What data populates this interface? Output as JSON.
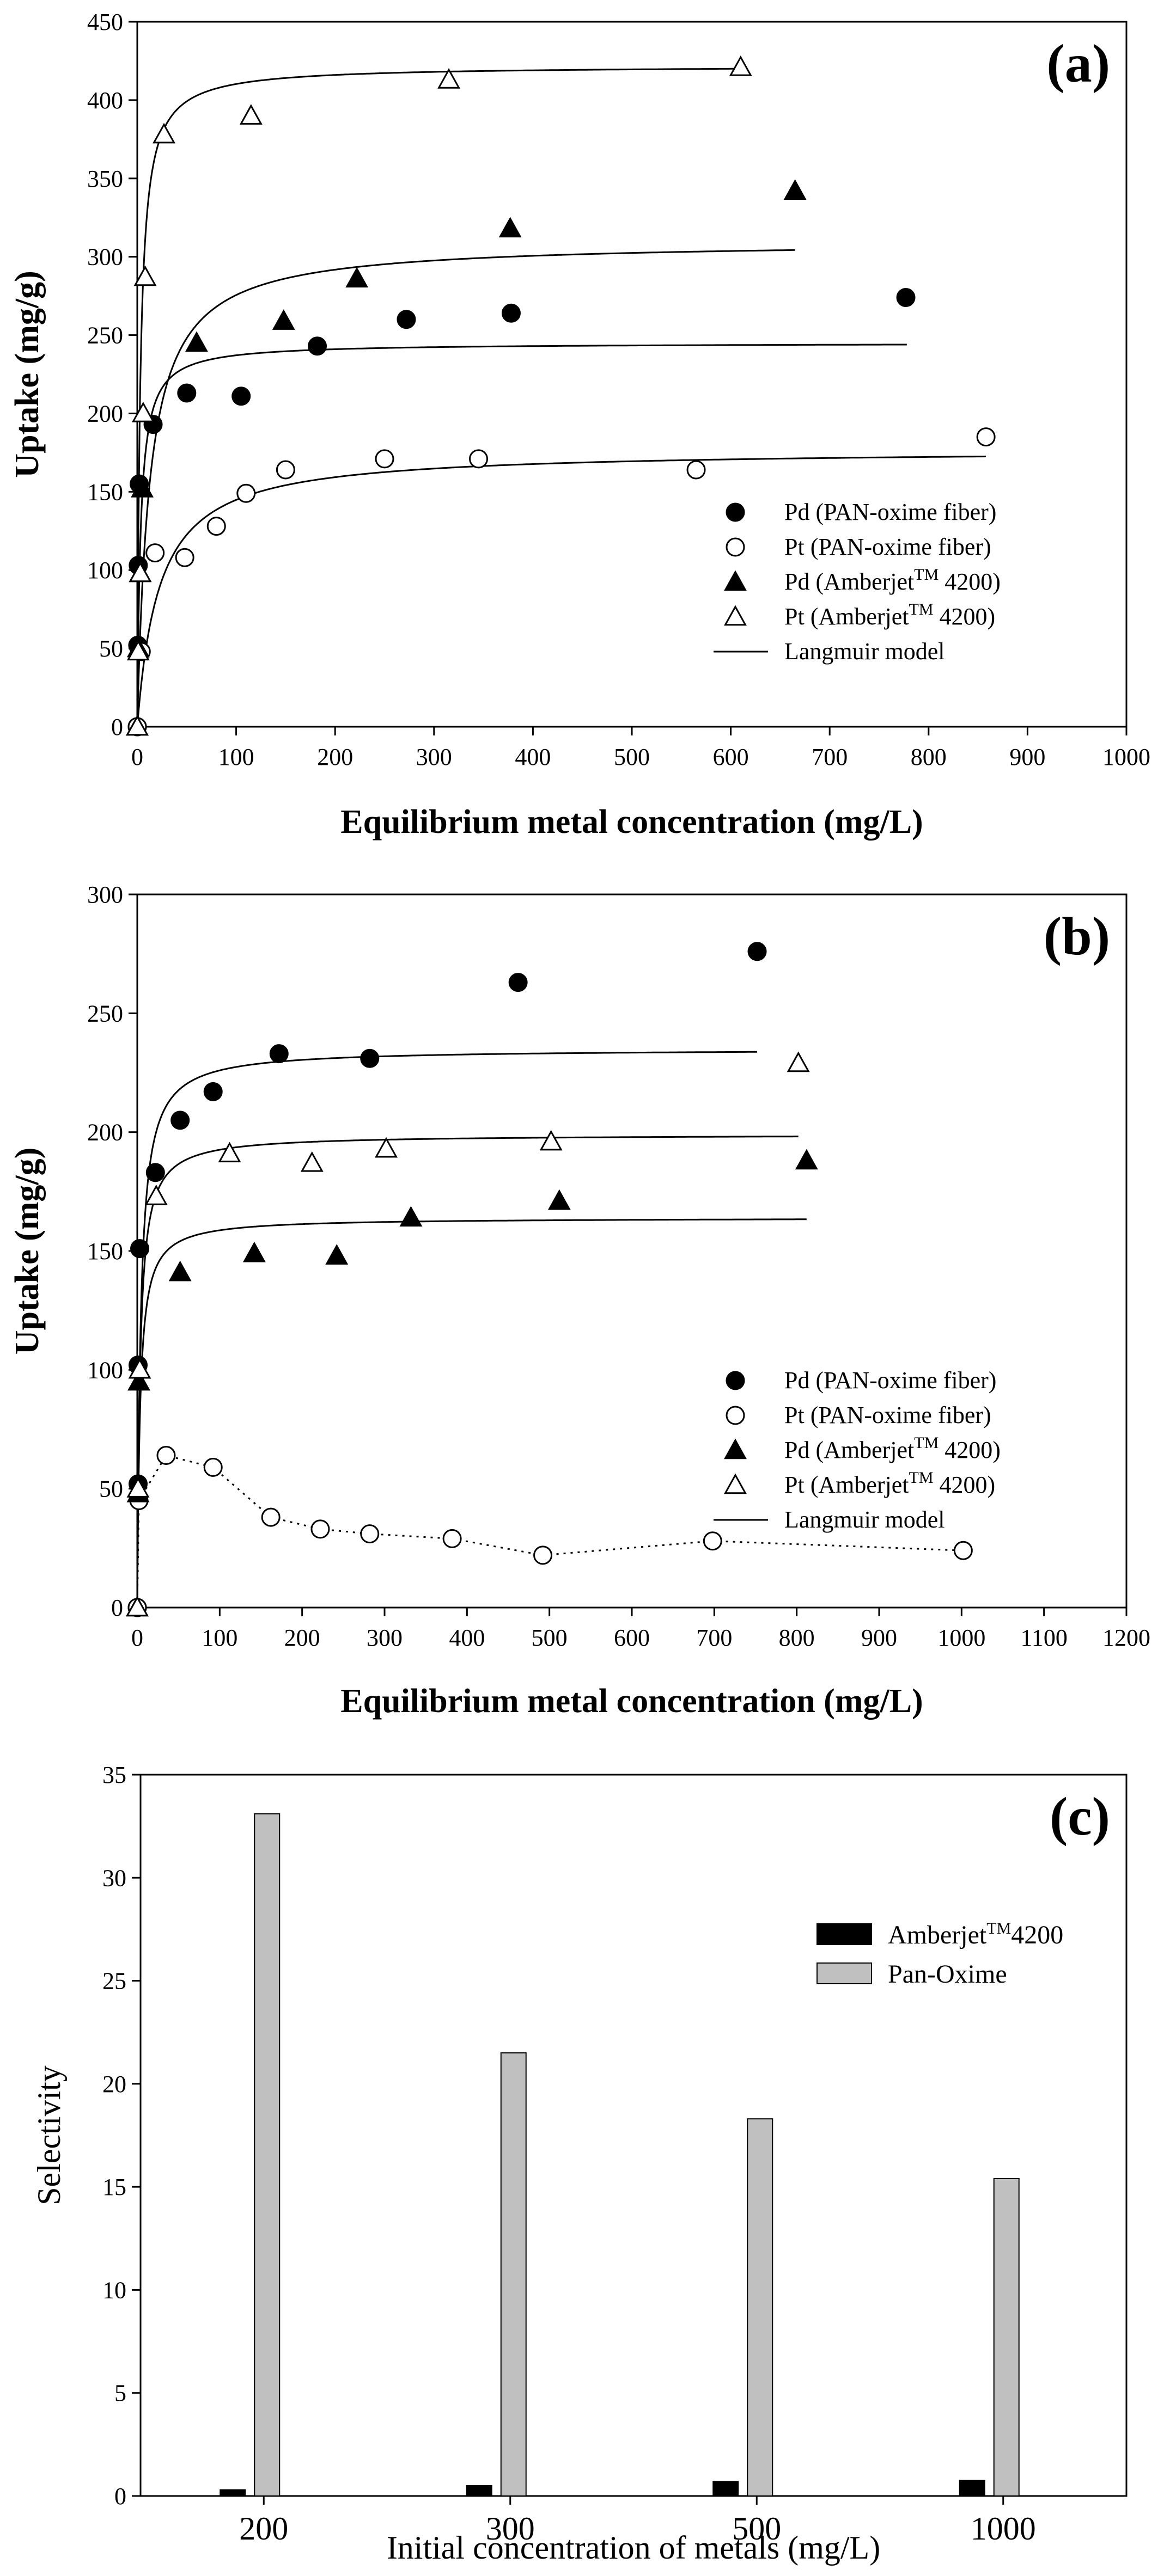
{
  "colors": {
    "ink": "#000000",
    "bar_pan": "#c0c0c0",
    "bar_amb": "#000000"
  },
  "chart_data": [
    {
      "id": "a",
      "type": "scatter",
      "panel_label": "(a)",
      "xlabel": "Equilibrium metal concentration (mg/L)",
      "ylabel": "Uptake (mg/g)",
      "xlim": [
        0,
        1000
      ],
      "ylim": [
        0,
        450
      ],
      "xticks": [
        0,
        100,
        200,
        300,
        400,
        500,
        600,
        700,
        800,
        900,
        1000
      ],
      "yticks": [
        0,
        50,
        100,
        150,
        200,
        250,
        300,
        350,
        400,
        450
      ],
      "legend": [
        {
          "label": "Pd (PAN-oxime fiber)",
          "kind": "marker",
          "marker": "circle-filled"
        },
        {
          "label": "Pt (PAN-oxime fiber)",
          "kind": "marker",
          "marker": "circle-open"
        },
        {
          "label": "Pd (Amberjet",
          "sup": "TM",
          "tail": " 4200)",
          "kind": "marker",
          "marker": "triangle-filled"
        },
        {
          "label": "Pt (Amberjet",
          "sup": "TM",
          "tail": " 4200)",
          "kind": "marker",
          "marker": "triangle-open"
        },
        {
          "label": "Langmuir model",
          "kind": "line"
        }
      ],
      "series": [
        {
          "name": "Pd (PAN-oxime fiber)",
          "marker": "circle-filled",
          "points": [
            [
              0,
              0
            ],
            [
              0.5,
              52
            ],
            [
              1,
              103
            ],
            [
              2,
              155
            ],
            [
              16,
              193
            ],
            [
              50,
              213
            ],
            [
              105,
              211
            ],
            [
              182,
              243
            ],
            [
              272,
              260
            ],
            [
              378,
              264
            ],
            [
              777,
              274
            ]
          ]
        },
        {
          "name": "Pt (PAN-oxime fiber)",
          "marker": "circle-open",
          "points": [
            [
              0,
              0
            ],
            [
              4,
              48
            ],
            [
              18,
              111
            ],
            [
              48,
              108
            ],
            [
              80,
              128
            ],
            [
              110,
              149
            ],
            [
              150,
              164
            ],
            [
              250,
              171
            ],
            [
              345,
              171
            ],
            [
              565,
              164
            ],
            [
              858,
              185
            ]
          ]
        },
        {
          "name": "Pd (Amberjet™ 4200)",
          "marker": "triangle-filled",
          "points": [
            [
              0,
              0
            ],
            [
              1,
              50
            ],
            [
              3,
              98
            ],
            [
              5,
              152
            ],
            [
              60,
              245
            ],
            [
              148,
              259
            ],
            [
              222,
              286
            ],
            [
              377,
              318
            ],
            [
              665,
              342
            ]
          ]
        },
        {
          "name": "Pt (Amberjet™ 4200)",
          "marker": "triangle-open",
          "points": [
            [
              0,
              0
            ],
            [
              1,
              48
            ],
            [
              3,
              98
            ],
            [
              6,
              200
            ],
            [
              8,
              287
            ],
            [
              27,
              378
            ],
            [
              115,
              390
            ],
            [
              315,
              413
            ],
            [
              610,
              421
            ]
          ]
        }
      ],
      "fits": [
        {
          "name": "Langmuir model (Pt Amberjet)",
          "qmax": 422,
          "b": 0.35,
          "xmax": 610
        },
        {
          "name": "Langmuir model (Pd Amberjet)",
          "qmax": 310,
          "b": 0.08,
          "xmax": 665
        },
        {
          "name": "Langmuir model (Pd PAN-oxime)",
          "qmax": 245,
          "b": 0.3,
          "xmax": 778
        },
        {
          "name": "Langmuir model (Pt PAN-oxime)",
          "qmax": 177,
          "b": 0.045,
          "xmax": 858
        }
      ]
    },
    {
      "id": "b",
      "type": "scatter",
      "panel_label": "(b)",
      "xlabel": "Equilibrium metal concentration (mg/L)",
      "ylabel": "Uptake (mg/g)",
      "xlim": [
        0,
        1200
      ],
      "ylim": [
        0,
        300
      ],
      "xticks": [
        0,
        100,
        200,
        300,
        400,
        500,
        600,
        700,
        800,
        900,
        1000,
        1100,
        1200
      ],
      "yticks": [
        0,
        50,
        100,
        150,
        200,
        250,
        300
      ],
      "legend": [
        {
          "label": "Pd (PAN-oxime fiber)",
          "kind": "marker",
          "marker": "circle-filled"
        },
        {
          "label": "Pt (PAN-oxime fiber)",
          "kind": "marker",
          "marker": "circle-open"
        },
        {
          "label": "Pd (Amberjet",
          "sup": "TM",
          "tail": " 4200)",
          "kind": "marker",
          "marker": "triangle-filled"
        },
        {
          "label": "Pt (Amberjet",
          "sup": "TM",
          "tail": " 4200)",
          "kind": "marker",
          "marker": "triangle-open"
        },
        {
          "label": "Langmuir model",
          "kind": "line"
        }
      ],
      "series": [
        {
          "name": "Pd (PAN-oxime fiber)",
          "marker": "circle-filled",
          "points": [
            [
              0,
              0
            ],
            [
              1,
              52
            ],
            [
              1,
              102
            ],
            [
              3,
              151
            ],
            [
              22,
              183
            ],
            [
              52,
              205
            ],
            [
              92,
              217
            ],
            [
              172,
              233
            ],
            [
              282,
              231
            ],
            [
              462,
              263
            ],
            [
              752,
              276
            ]
          ]
        },
        {
          "name": "Pt (PAN-oxime fiber)",
          "marker": "circle-open",
          "dotted": true,
          "points": [
            [
              0,
              0
            ],
            [
              2,
              45
            ],
            [
              35,
              64
            ],
            [
              92,
              59
            ],
            [
              162,
              38
            ],
            [
              222,
              33
            ],
            [
              282,
              31
            ],
            [
              382,
              29
            ],
            [
              492,
              22
            ],
            [
              698,
              28
            ],
            [
              1002,
              24
            ]
          ]
        },
        {
          "name": "Pd (Amberjet™ 4200)",
          "marker": "triangle-filled",
          "points": [
            [
              0,
              0
            ],
            [
              1,
              48
            ],
            [
              2,
              95
            ],
            [
              52,
              141
            ],
            [
              142,
              149
            ],
            [
              242,
              148
            ],
            [
              332,
              164
            ],
            [
              512,
              171
            ],
            [
              812,
              188
            ]
          ]
        },
        {
          "name": "Pt (Amberjet™ 4200)",
          "marker": "triangle-open",
          "points": [
            [
              0,
              0
            ],
            [
              1,
              50
            ],
            [
              3,
              100
            ],
            [
              23,
              173
            ],
            [
              112,
              191
            ],
            [
              212,
              187
            ],
            [
              302,
              193
            ],
            [
              502,
              196
            ],
            [
              802,
              229
            ]
          ]
        }
      ],
      "fits": [
        {
          "name": "Langmuir model (Pd PAN-oxime)",
          "qmax": 235,
          "b": 0.25,
          "xmax": 752
        },
        {
          "name": "Langmuir model (Pt Amberjet)",
          "qmax": 199,
          "b": 0.3,
          "xmax": 802
        },
        {
          "name": "Langmuir model (Pd Amberjet)",
          "qmax": 164,
          "b": 0.3,
          "xmax": 812
        }
      ]
    },
    {
      "id": "c",
      "type": "bar",
      "panel_label": "(c)",
      "xlabel": "Initial concentration of metals (mg/L)",
      "ylabel": "Selectivity",
      "ylim": [
        0,
        35
      ],
      "yticks": [
        0,
        5,
        10,
        15,
        20,
        25,
        30,
        35
      ],
      "categories": [
        "200",
        "300",
        "500",
        "1000"
      ],
      "legend": [
        {
          "label": "Amberjet",
          "sup": "TM",
          "tail": "4200",
          "kind": "bar-dark"
        },
        {
          "label": "Pan-Oxime",
          "kind": "bar-light"
        }
      ],
      "series": [
        {
          "name": "Amberjet™ 4200",
          "values": [
            0.3,
            0.5,
            0.7,
            0.75
          ]
        },
        {
          "name": "Pan-Oxime",
          "values": [
            33.1,
            21.5,
            18.3,
            15.4
          ]
        }
      ]
    }
  ]
}
